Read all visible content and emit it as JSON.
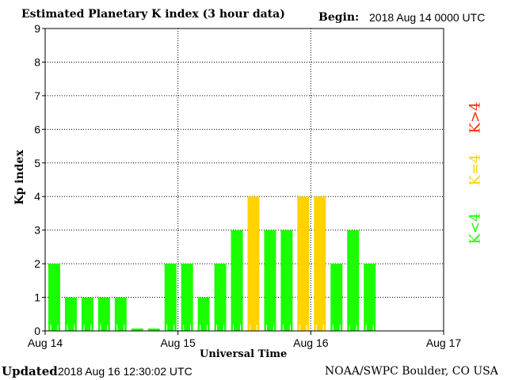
{
  "chart_data": {
    "type": "bar",
    "title": "Estimated Planetary K index (3 hour data)",
    "begin_label": "Begin:",
    "begin_value": "2018 Aug 14 0000 UTC",
    "xlabel": "Universal Time",
    "ylabel": "Kp index",
    "ylim": [
      0,
      9
    ],
    "yticks": [
      "0",
      "1",
      "2",
      "3",
      "4",
      "5",
      "6",
      "7",
      "8",
      "9"
    ],
    "xticks": [
      "Aug 14",
      "Aug 15",
      "Aug 16",
      "Aug 17"
    ],
    "bar_interval_hours": 3,
    "values": [
      2,
      1,
      1,
      1,
      1,
      0,
      0,
      2,
      2,
      1,
      2,
      3,
      4,
      3,
      3,
      4,
      4,
      2,
      3,
      2
    ],
    "grid": true,
    "legend": [
      {
        "label": "K<4",
        "color": "#19ff00"
      },
      {
        "label": "K=4",
        "color": "#ffd200"
      },
      {
        "label": "K>4",
        "color": "#ff2a00"
      }
    ]
  },
  "footer": {
    "updated_label": "Updated",
    "updated_value": "2018 Aug 16 12:30:02 UTC",
    "source": "NOAA/SWPC Boulder, CO USA"
  }
}
